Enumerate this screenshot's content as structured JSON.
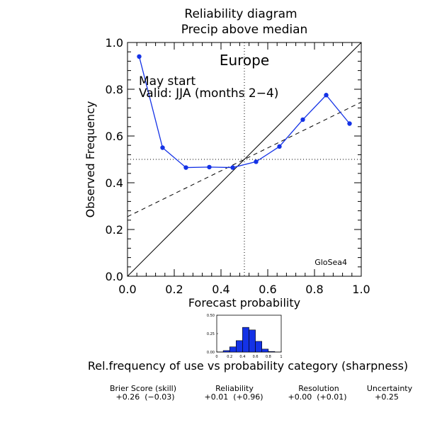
{
  "chart_data": [
    {
      "type": "line",
      "title": "Reliability diagram",
      "subtitle": "Precip above median",
      "region_label": "Europe",
      "start_label": "May start",
      "valid_label": "Valid: JJA (months 2−4)",
      "model_label": "GloSea4",
      "xlabel": "Forecast probability",
      "ylabel": "Observed Frequency",
      "xlim": [
        0,
        1
      ],
      "ylim": [
        0,
        1
      ],
      "x_ticks": [
        "0.0",
        "0.2",
        "0.4",
        "0.6",
        "0.8",
        "1.0"
      ],
      "y_ticks": [
        "0.0",
        "0.2",
        "0.4",
        "0.6",
        "0.8",
        "1.0"
      ],
      "grid": false,
      "series": [
        {
          "color": "#1432e6",
          "x": [
            0.05,
            0.15,
            0.25,
            0.35,
            0.45,
            0.55,
            0.65,
            0.75,
            0.85,
            0.95
          ],
          "y": [
            0.94,
            0.55,
            0.465,
            0.467,
            0.465,
            0.49,
            0.555,
            0.67,
            0.775,
            0.653
          ]
        }
      ],
      "diagonal": {
        "x": [
          0,
          1
        ],
        "y": [
          0,
          1
        ]
      },
      "fit_line": {
        "x": [
          0,
          1
        ],
        "y": [
          0.255,
          0.745
        ]
      },
      "climatology": {
        "x": 0.5,
        "y": 0.5
      }
    },
    {
      "type": "bar",
      "caption": "Rel.frequency of use vs probability category (sharpness)",
      "categories": [
        0.05,
        0.15,
        0.25,
        0.35,
        0.45,
        0.55,
        0.65,
        0.75,
        0.85,
        0.95
      ],
      "values": [
        0.002,
        0.02,
        0.07,
        0.155,
        0.335,
        0.3,
        0.145,
        0.04,
        0.008,
        0.001
      ],
      "xlim": [
        0,
        1
      ],
      "ylim": [
        0,
        0.5
      ],
      "x_ticks": [
        "0",
        "0.2",
        "0.4",
        "0.6",
        "0.8",
        "1"
      ],
      "y_ticks": [
        "0.00",
        "0.25",
        "0.50"
      ],
      "bar_color": "#1432e6"
    }
  ],
  "scores": [
    {
      "label": "Brier Score (skill)",
      "value": "+0.26  (−0.03)"
    },
    {
      "label": "Reliability",
      "value": "+0.01  (+0.96)"
    },
    {
      "label": "Resolution",
      "value": "+0.00  (+0.01)"
    },
    {
      "label": "Uncertainty",
      "value": "+0.25"
    }
  ]
}
